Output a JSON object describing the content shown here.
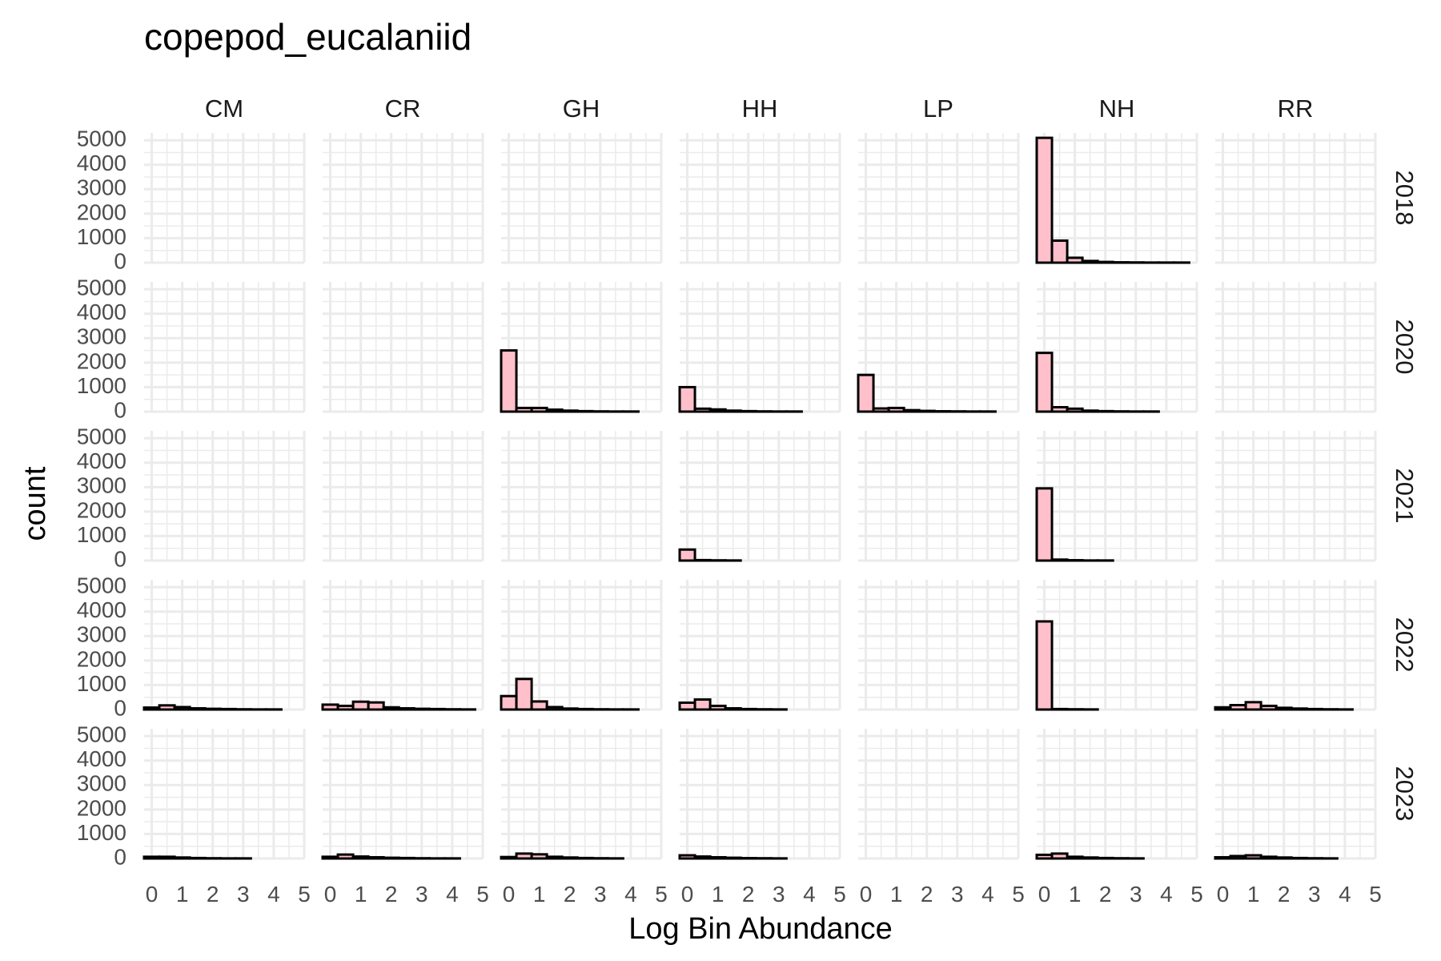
{
  "chart_data": {
    "type": "bar",
    "title": "copepod_eucalaniid",
    "xlabel": "Log Bin Abundance",
    "ylabel": "count",
    "xlim": [
      -0.25,
      5.0
    ],
    "ylim": [
      0,
      5300
    ],
    "x_ticks": [
      "0",
      "1",
      "2",
      "3",
      "4",
      "5"
    ],
    "y_ticks": [
      "0",
      "1000",
      "2000",
      "3000",
      "4000",
      "5000"
    ],
    "sites": [
      "CM",
      "CR",
      "GH",
      "HH",
      "LP",
      "NH",
      "RR"
    ],
    "years": [
      "2018",
      "2020",
      "2021",
      "2022",
      "2023"
    ],
    "bin_width": 0.5,
    "bin_starts": [
      -0.25,
      0.25,
      0.75,
      1.25,
      1.75,
      2.25,
      2.75,
      3.25,
      3.75,
      4.25
    ],
    "grid": true,
    "colors": {
      "fill": "#ffc0cb",
      "stroke": "#000000",
      "grid": "#ebebeb"
    },
    "panels": [
      {
        "site": "NH",
        "year": "2018",
        "counts": [
          5100,
          900,
          200,
          70,
          30,
          15,
          10,
          5,
          5,
          5
        ]
      },
      {
        "site": "GH",
        "year": "2020",
        "counts": [
          2500,
          150,
          150,
          80,
          40,
          20,
          10,
          5,
          5,
          0
        ]
      },
      {
        "site": "HH",
        "year": "2020",
        "counts": [
          1000,
          120,
          90,
          40,
          20,
          10,
          5,
          5,
          0,
          0
        ]
      },
      {
        "site": "LP",
        "year": "2020",
        "counts": [
          1500,
          130,
          150,
          60,
          30,
          15,
          10,
          5,
          5,
          0
        ]
      },
      {
        "site": "NH",
        "year": "2020",
        "counts": [
          2400,
          180,
          120,
          40,
          20,
          10,
          5,
          5,
          0,
          0
        ]
      },
      {
        "site": "HH",
        "year": "2021",
        "counts": [
          450,
          20,
          10,
          5,
          0,
          0,
          0,
          0,
          0,
          0
        ]
      },
      {
        "site": "NH",
        "year": "2021",
        "counts": [
          2950,
          40,
          15,
          5,
          5,
          0,
          0,
          0,
          0,
          0
        ]
      },
      {
        "site": "CM",
        "year": "2022",
        "counts": [
          80,
          170,
          100,
          50,
          30,
          20,
          10,
          5,
          5,
          0
        ]
      },
      {
        "site": "CR",
        "year": "2022",
        "counts": [
          200,
          150,
          320,
          290,
          90,
          50,
          30,
          20,
          10,
          5
        ]
      },
      {
        "site": "GH",
        "year": "2022",
        "counts": [
          550,
          1250,
          330,
          100,
          40,
          20,
          10,
          5,
          5,
          0
        ]
      },
      {
        "site": "HH",
        "year": "2022",
        "counts": [
          280,
          410,
          150,
          50,
          20,
          10,
          5,
          0,
          0,
          0
        ]
      },
      {
        "site": "NH",
        "year": "2022",
        "counts": [
          3600,
          20,
          10,
          5,
          0,
          0,
          0,
          0,
          0,
          0
        ]
      },
      {
        "site": "RR",
        "year": "2022",
        "counts": [
          90,
          180,
          300,
          150,
          70,
          40,
          20,
          10,
          5,
          0
        ]
      },
      {
        "site": "CM",
        "year": "2023",
        "counts": [
          70,
          70,
          40,
          20,
          10,
          5,
          5,
          0,
          0,
          0
        ]
      },
      {
        "site": "CR",
        "year": "2023",
        "counts": [
          70,
          160,
          80,
          50,
          30,
          20,
          10,
          5,
          5,
          0
        ]
      },
      {
        "site": "GH",
        "year": "2023",
        "counts": [
          60,
          200,
          170,
          70,
          40,
          20,
          10,
          5,
          0,
          0
        ]
      },
      {
        "site": "HH",
        "year": "2023",
        "counts": [
          130,
          80,
          50,
          30,
          15,
          10,
          5,
          0,
          0,
          0
        ]
      },
      {
        "site": "NH",
        "year": "2023",
        "counts": [
          150,
          200,
          70,
          40,
          20,
          10,
          5,
          0,
          0,
          0
        ]
      },
      {
        "site": "RR",
        "year": "2023",
        "counts": [
          50,
          100,
          130,
          70,
          40,
          20,
          10,
          5,
          0,
          0
        ]
      }
    ]
  }
}
